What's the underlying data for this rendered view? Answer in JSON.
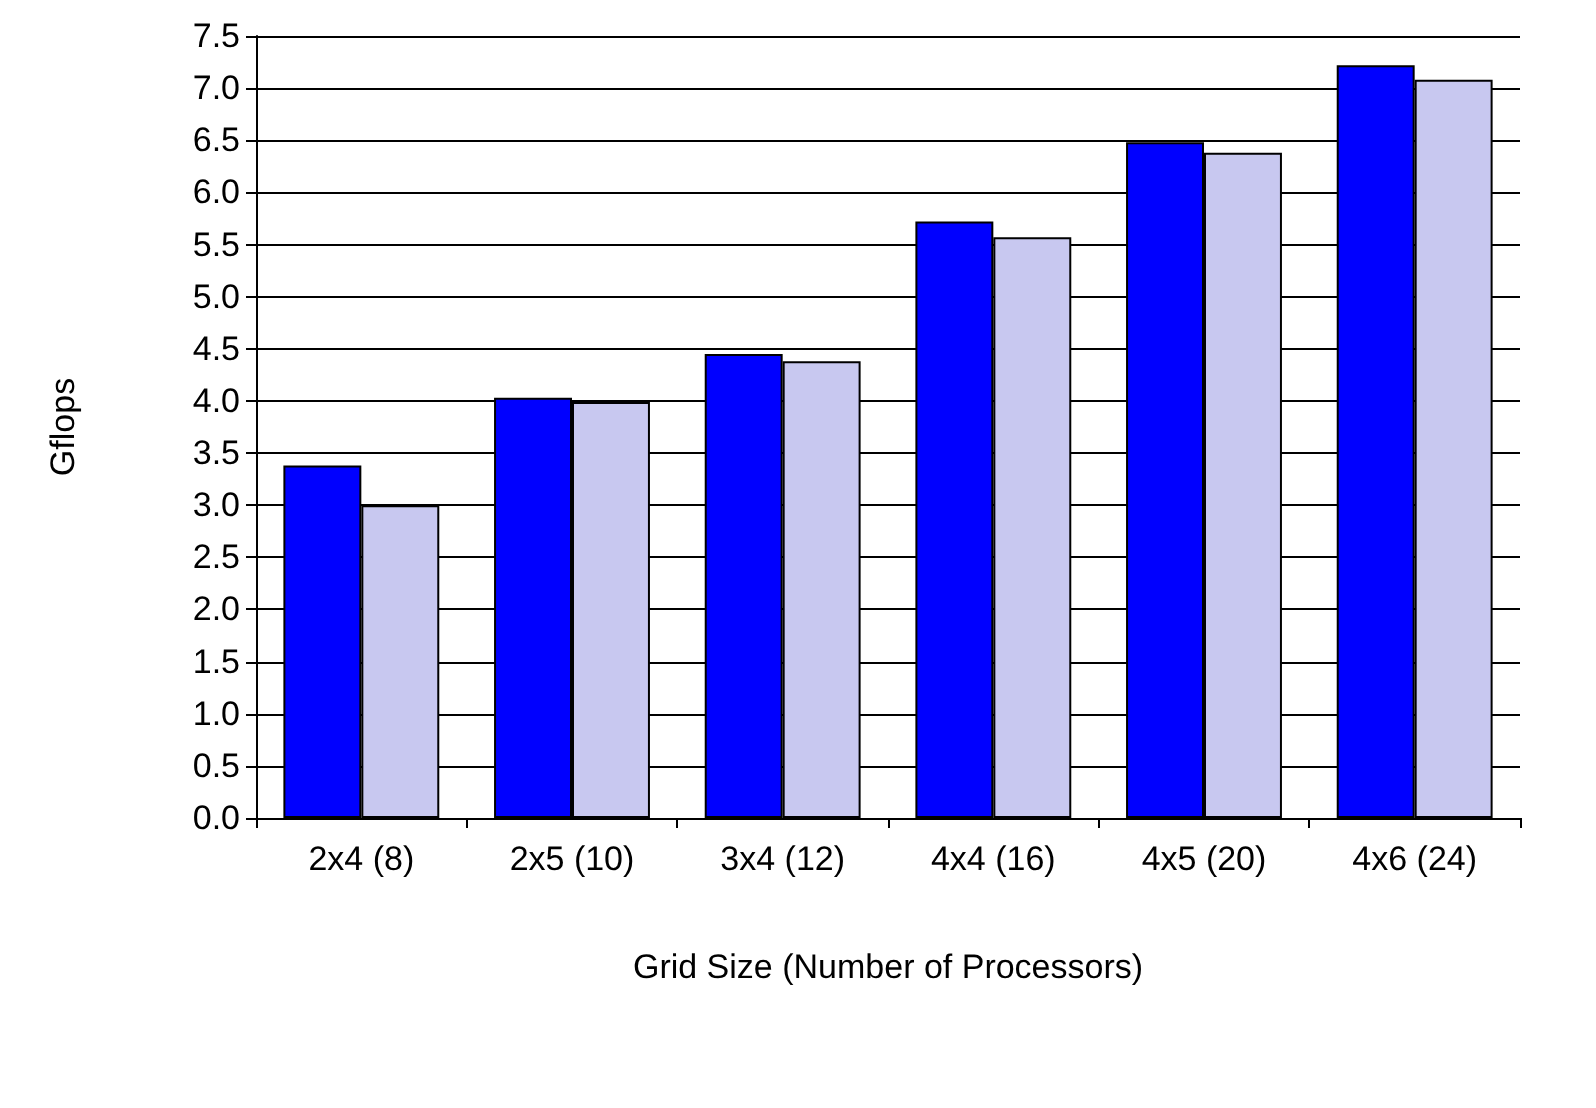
{
  "chart_data": {
    "type": "bar",
    "xlabel": "Grid Size (Number of Processors)",
    "ylabel": "Gflops",
    "categories": [
      "2x4 (8)",
      "2x5 (10)",
      "3x4 (12)",
      "4x4 (16)",
      "4x5 (20)",
      "4x6 (24)"
    ],
    "series": [
      {
        "color": "#0000ff",
        "values": [
          3.38,
          4.03,
          4.45,
          5.72,
          6.48,
          7.22
        ]
      },
      {
        "color": "#c8c8f0",
        "values": [
          3.0,
          3.99,
          4.38,
          5.57,
          6.38,
          7.08
        ]
      }
    ],
    "ylim": [
      0,
      7.5
    ],
    "yticks": [
      {
        "value": 0,
        "label": "0.0"
      },
      {
        "value": 0.5,
        "label": "0.5"
      },
      {
        "value": 1,
        "label": "1.0"
      },
      {
        "value": 1.5,
        "label": "1.5"
      },
      {
        "value": 2,
        "label": "2.0"
      },
      {
        "value": 2.5,
        "label": "2.5"
      },
      {
        "value": 3,
        "label": "3.0"
      },
      {
        "value": 3.5,
        "label": "3.5"
      },
      {
        "value": 4,
        "label": "4.0"
      },
      {
        "value": 4.5,
        "label": "4.5"
      },
      {
        "value": 5,
        "label": "5.0"
      },
      {
        "value": 5.5,
        "label": "5.5"
      },
      {
        "value": 6,
        "label": "6.0"
      },
      {
        "value": 6.5,
        "label": "6.5"
      },
      {
        "value": 7,
        "label": "7.0"
      },
      {
        "value": 7.5,
        "label": "7.5"
      }
    ],
    "grid": "y"
  }
}
